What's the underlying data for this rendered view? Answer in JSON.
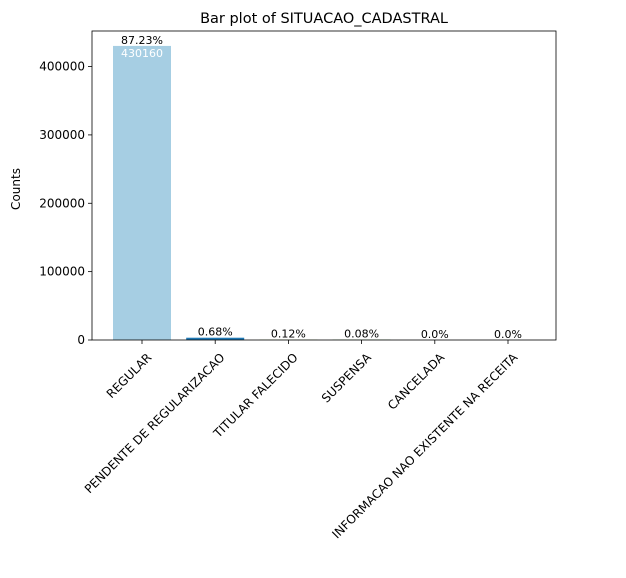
{
  "chart_data": {
    "type": "bar",
    "title": "Bar plot of SITUACAO_CADASTRAL",
    "xlabel": "",
    "ylabel": "Counts",
    "ylim": [
      0,
      452000
    ],
    "yticks": [
      0,
      100000,
      200000,
      300000,
      400000
    ],
    "ytick_labels": [
      "0",
      "100000",
      "200000",
      "300000",
      "400000"
    ],
    "categories": [
      "REGULAR",
      "PENDENTE DE REGULARIZACAO",
      "TITULAR FALECIDO",
      "SUSPENSA",
      "CANCELADA",
      "INFORMACAO NAO EXISTENTE NA RECEITA"
    ],
    "values": [
      430160,
      3350,
      590,
      390,
      20,
      5
    ],
    "percent_labels": [
      "87.23%",
      "0.68%",
      "0.12%",
      "0.08%",
      "0.0%",
      "0.0%"
    ],
    "value_labels": [
      "430160",
      "",
      "",
      "",
      "",
      ""
    ],
    "bar_colors": [
      "#a6cee3",
      "#1f78b4",
      "#b2df8a",
      "#33a02c",
      "#fb9a99",
      "#e31a1c"
    ],
    "grid": false,
    "legend": "none"
  }
}
